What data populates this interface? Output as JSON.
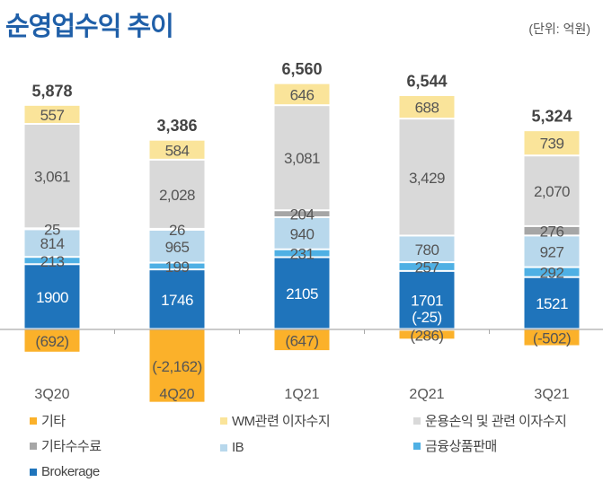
{
  "title": "순영업수익 추이",
  "unit": "(단위: 억원)",
  "chart_data": {
    "type": "bar",
    "stacked": true,
    "categories": [
      "3Q20",
      "4Q20",
      "1Q21",
      "2Q21",
      "3Q21"
    ],
    "totals": [
      "5,878",
      "3,386",
      "6,560",
      "6,544",
      "5,324"
    ],
    "series": [
      {
        "name": "Brokerage",
        "color": "#1f74bb",
        "values": [
          1900,
          1746,
          2105,
          1701,
          1521
        ],
        "labels": [
          "1900",
          "1746",
          "2105",
          "1701",
          "1521"
        ]
      },
      {
        "name": "금융상품판매",
        "color": "#4fb0e4",
        "values": [
          213,
          199,
          231,
          257,
          292
        ],
        "labels": [
          "213",
          "199",
          "231",
          "257",
          "292"
        ]
      },
      {
        "name": "IB",
        "color": "#b8d8ec",
        "values": [
          814,
          965,
          940,
          780,
          927
        ],
        "labels": [
          "814",
          "965",
          "940",
          "780",
          "927"
        ]
      },
      {
        "name": "기타수수료",
        "color": "#a6a6a6",
        "values": [
          25,
          26,
          204,
          -25,
          276
        ],
        "labels": [
          "25",
          "26",
          "204",
          "(-25)",
          "276"
        ]
      },
      {
        "name": "운용손익 및 관련 이자수지",
        "color": "#d9d9d9",
        "values": [
          3061,
          2028,
          3081,
          3429,
          2070
        ],
        "labels": [
          "3,061",
          "2,028",
          "3,081",
          "3,429",
          "2,070"
        ]
      },
      {
        "name": "WM관련 이자수지",
        "color": "#fae49a",
        "values": [
          557,
          584,
          646,
          688,
          739
        ],
        "labels": [
          "557",
          "584",
          "646",
          "688",
          "739"
        ]
      },
      {
        "name": "기타",
        "color": "#fbb12a",
        "values": [
          -692,
          -2162,
          -647,
          -286,
          -502
        ],
        "labels": [
          "(692)",
          "(-2,162)",
          "(647)",
          "(286)",
          "(-502)"
        ]
      }
    ],
    "legend": [
      "기타",
      "WM관련 이자수지",
      "운용손익 및 관련 이자수지",
      "기타수수료",
      "IB",
      "금융상품판매",
      "Brokerage"
    ]
  }
}
